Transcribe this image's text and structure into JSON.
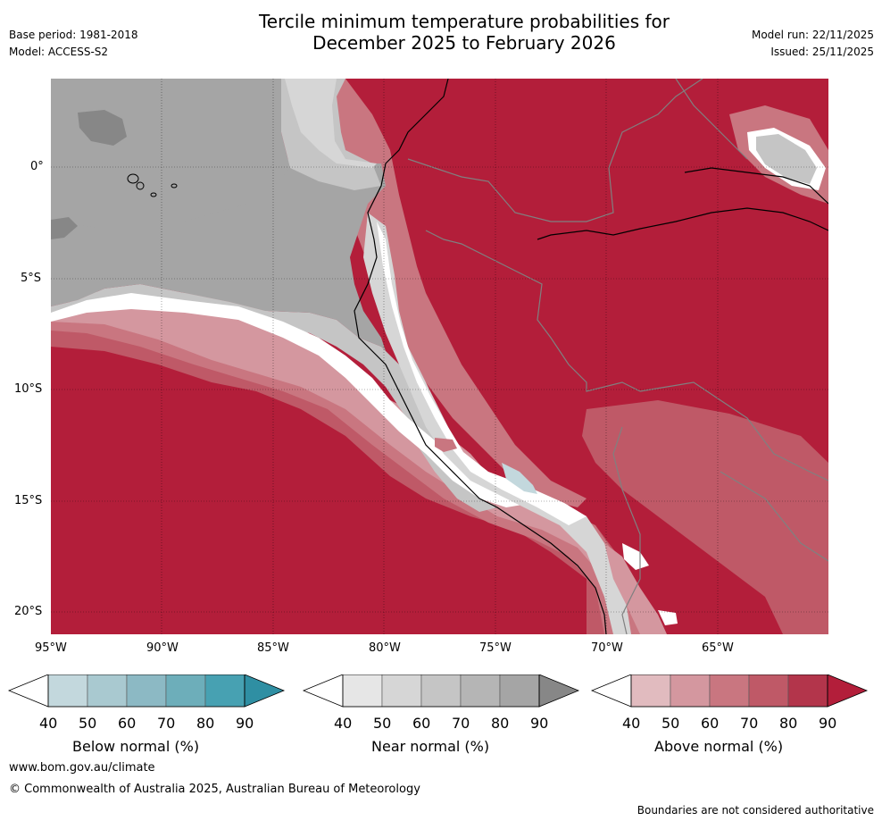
{
  "header": {
    "title_line1": "Tercile minimum temperature probabilities for",
    "title_line2": "December 2025 to February 2026",
    "base_period": "Base period: 1981-2018",
    "model": "Model: ACCESS-S2",
    "model_run": "Model run: 22/11/2025",
    "issued": "Issued: 25/11/2025"
  },
  "map": {
    "lat_labels": [
      "0°",
      "5°S",
      "10°S",
      "15°S",
      "20°S"
    ],
    "lon_labels": [
      "95°W",
      "90°W",
      "85°W",
      "80°W",
      "75°W",
      "70°W",
      "65°W"
    ],
    "colors": {
      "ocean_gray": "#a5a5a5",
      "above_90": "#b31e3a",
      "land_border": "#808080"
    }
  },
  "colorbars": [
    {
      "label": "Below normal (%)",
      "ticks": [
        "40",
        "50",
        "60",
        "70",
        "80",
        "90"
      ],
      "colors": [
        "#c3d8dd",
        "#a9c9d0",
        "#8cb9c4",
        "#6daeba",
        "#47a1b2",
        "#2f8fa3"
      ]
    },
    {
      "label": "Near normal (%)",
      "ticks": [
        "40",
        "50",
        "60",
        "70",
        "80",
        "90"
      ],
      "colors": [
        "#e6e6e6",
        "#d6d6d6",
        "#c5c5c5",
        "#b5b5b5",
        "#a5a5a5",
        "#878787"
      ]
    },
    {
      "label": "Above normal (%)",
      "ticks": [
        "40",
        "50",
        "60",
        "70",
        "80",
        "90"
      ],
      "colors": [
        "#e1bbbf",
        "#d4979f",
        "#c97680",
        "#bf5967",
        "#b3354b",
        "#b31e3a"
      ]
    }
  ],
  "footer": {
    "url": "www.bom.gov.au/climate",
    "copyright": "© Commonwealth of Australia 2025, Australian Bureau of Meteorology",
    "disclaimer": "Boundaries are not considered authoritative"
  }
}
